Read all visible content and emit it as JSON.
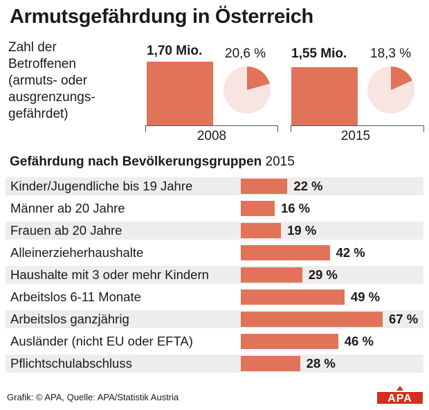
{
  "title": "Armutsgefährdung in Österreich",
  "description_lines": [
    "Zahl der",
    "Betroffenen",
    "(armuts- oder",
    "ausgrenzungs-",
    "gefährdet)"
  ],
  "colors": {
    "bar": "#e07358",
    "pie_bg": "#f8e4e0",
    "row_shade": "#efecec",
    "text": "#1a1a1a"
  },
  "overview": [
    {
      "year": "2008",
      "amount_label": "1,70 Mio.",
      "amount": 1.7,
      "pct_label": "20,6 %",
      "pct": 20.6
    },
    {
      "year": "2015",
      "amount_label": "1,55 Mio.",
      "amount": 1.55,
      "pct_label": "18,3 %",
      "pct": 18.3
    }
  ],
  "section": {
    "title_bold": "Gefährdung nach Bevölkerungsgruppen",
    "title_year": "2015"
  },
  "chart_data": {
    "type": "bar",
    "orientation": "horizontal",
    "title": "Gefährdung nach Bevölkerungsgruppen 2015",
    "categories": [
      "Kinder/Jugendliche bis 19 Jahre",
      "Männer ab 20 Jahre",
      "Frauen ab 20 Jahre",
      "Alleinerzieherhaushalte",
      "Haushalte mit 3 oder mehr Kindern",
      "Arbeitslos 6-11 Monate",
      "Arbeitslos ganzjährig",
      "Ausländer (nicht EU oder EFTA)",
      "Pflichtschulabschluss"
    ],
    "values": [
      22,
      16,
      19,
      42,
      29,
      49,
      67,
      46,
      28
    ],
    "value_labels": [
      "22 %",
      "16 %",
      "19 %",
      "42 %",
      "29 %",
      "49 %",
      "67 %",
      "46 %",
      "28 %"
    ],
    "unit": "%",
    "xlim": [
      0,
      67
    ]
  },
  "source": "Grafik: © APA, Quelle: APA/Statistik Austria",
  "logo_text": "APA"
}
